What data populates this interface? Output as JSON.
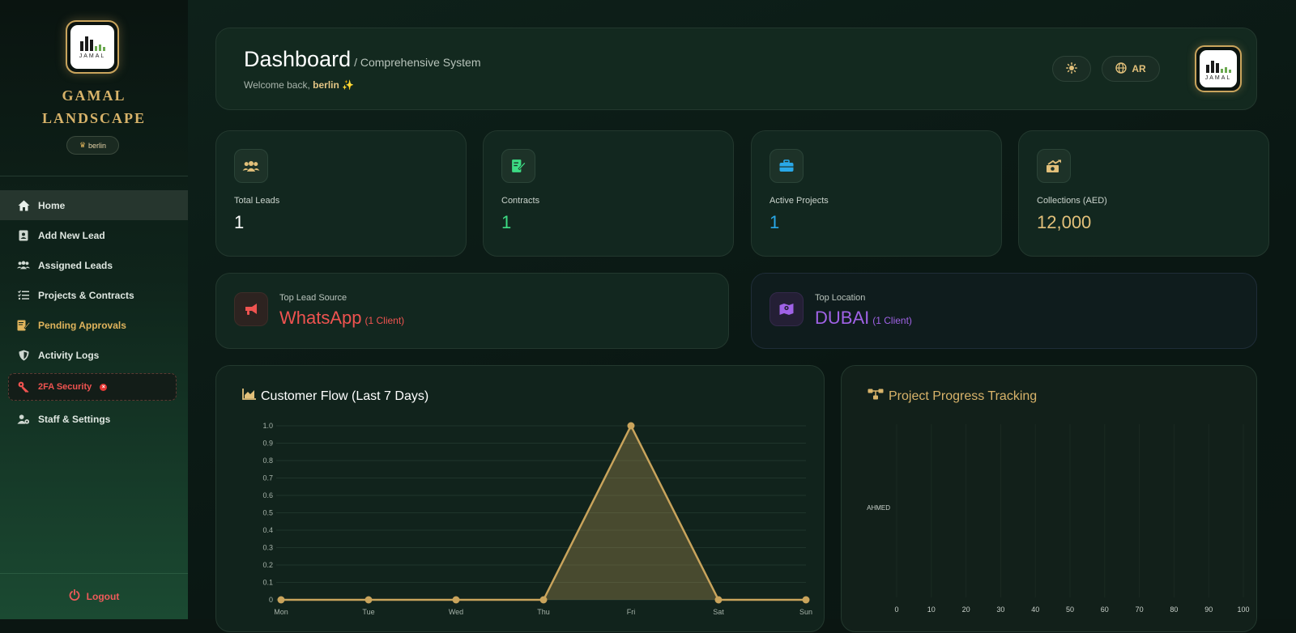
{
  "sidebar": {
    "logo_text": "JAMAL",
    "brand_line1": "GAMAL",
    "brand_line2": "LANDSCAPE",
    "user": "berlin",
    "items": [
      {
        "label": "Home",
        "icon": "home-icon"
      },
      {
        "label": "Add New Lead",
        "icon": "contact-card-icon"
      },
      {
        "label": "Assigned Leads",
        "icon": "users-icon"
      },
      {
        "label": "Projects & Contracts",
        "icon": "list-check-icon"
      },
      {
        "label": "Pending Approvals",
        "icon": "file-signature-icon"
      },
      {
        "label": "Activity Logs",
        "icon": "shield-icon"
      },
      {
        "label": "2FA Security",
        "icon": "key-icon"
      },
      {
        "label": "Staff & Settings",
        "icon": "user-gear-icon"
      }
    ],
    "logout": "Logout"
  },
  "header": {
    "title": "Dashboard",
    "subtitle": "/ Comprehensive System",
    "welcome": "Welcome back,",
    "user": "berlin",
    "sparkle": "✨",
    "lang_button": "AR"
  },
  "stats": [
    {
      "label": "Total Leads",
      "value": "1",
      "color": "#ffffff",
      "icon": "users-icon"
    },
    {
      "label": "Contracts",
      "value": "1",
      "color": "#3ddc84",
      "icon": "contract-sign-icon"
    },
    {
      "label": "Active Projects",
      "value": "1",
      "color": "#29a8e8",
      "icon": "briefcase-icon"
    },
    {
      "label": "Collections (AED)",
      "value": "12,000",
      "color": "#e2c07a",
      "icon": "money-chart-icon"
    }
  ],
  "top_source": {
    "label": "Top Lead Source",
    "value": "WhatsApp",
    "count": "(1 Client)",
    "color": "#ef5350"
  },
  "top_location": {
    "label": "Top Location",
    "value": "DUBAI",
    "count": "(1 Client)",
    "color": "#a062e6"
  },
  "chart_data": [
    {
      "type": "area",
      "title": "Customer Flow (Last 7 Days)",
      "categories": [
        "Mon",
        "Tue",
        "Wed",
        "Thu",
        "Fri",
        "Sat",
        "Sun"
      ],
      "values": [
        0,
        0,
        0,
        0,
        1,
        0,
        0
      ],
      "ylim": [
        0,
        1
      ],
      "yticks": [
        "0",
        "0.1",
        "0.2",
        "0.3",
        "0.4",
        "0.5",
        "0.6",
        "0.7",
        "0.8",
        "0.9",
        "1.0"
      ],
      "color": "#c9a45c",
      "grid": true
    },
    {
      "type": "bar",
      "title": "Project Progress Tracking",
      "categories": [
        "AHMED"
      ],
      "xticks": [
        "0",
        "10",
        "20",
        "30",
        "40",
        "50",
        "60",
        "70",
        "80",
        "90",
        "100"
      ],
      "xlim": [
        0,
        100
      ],
      "values": [
        0
      ]
    }
  ]
}
